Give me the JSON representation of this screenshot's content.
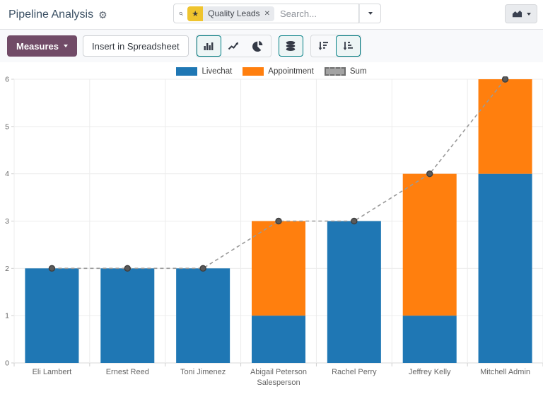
{
  "header": {
    "title": "Pipeline Analysis",
    "search": {
      "facet_label": "Quality Leads",
      "placeholder": "Search..."
    }
  },
  "toolbar": {
    "measures_label": "Measures",
    "insert_label": "Insert in Spreadsheet"
  },
  "icons": {
    "gear": "⚙",
    "star": "★",
    "close": "✕"
  },
  "colors": {
    "accent": "#017e84",
    "measures_button": "#714B67",
    "grid": "#ececec",
    "axis_text": "#666666"
  },
  "chart_data": {
    "type": "bar",
    "stacked": true,
    "title": "",
    "xlabel": "Salesperson",
    "ylabel": "",
    "ylim": [
      0,
      6
    ],
    "yticks": [
      0,
      1,
      2,
      3,
      4,
      5,
      6
    ],
    "grid": true,
    "legend_position": "top",
    "categories": [
      "Eli Lambert",
      "Ernest Reed",
      "Toni Jimenez",
      "Abigail Peterson",
      "Rachel Perry",
      "Jeffrey Kelly",
      "Mitchell Admin"
    ],
    "series": [
      {
        "name": "Livechat",
        "color": "#1f77b4",
        "values": [
          2,
          2,
          2,
          1,
          3,
          1,
          4
        ]
      },
      {
        "name": "Appointment",
        "color": "#ff7f0e",
        "values": [
          0,
          0,
          0,
          2,
          0,
          3,
          2
        ]
      }
    ],
    "line_series": {
      "name": "Sum",
      "color": "#9a9a9a",
      "marker_color": "#5a5a5a",
      "style": "dashed",
      "values": [
        2,
        2,
        2,
        3,
        3,
        4,
        6
      ]
    }
  }
}
